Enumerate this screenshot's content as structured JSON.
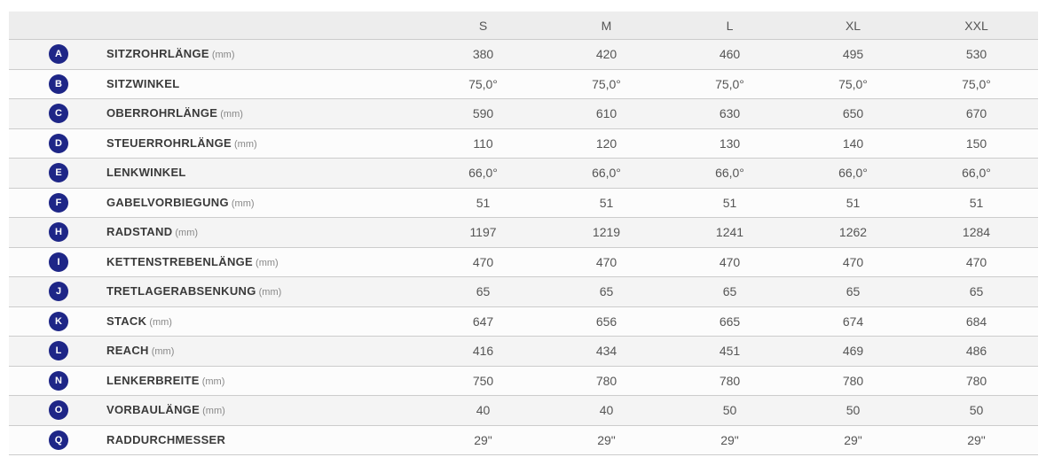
{
  "colors": {
    "badge-bg": "#1e2687",
    "header-bg": "#ededed",
    "row-shade": "#f4f4f4",
    "row-plain": "#fcfcfc",
    "border": "#cccccc",
    "label-text": "#3a3a3a",
    "value-text": "#555555",
    "unit-text": "#888888"
  },
  "table": {
    "size_headers": [
      "S",
      "M",
      "L",
      "XL",
      "XXL"
    ],
    "rows": [
      {
        "badge": "A",
        "label": "SITZROHRLÄNGE",
        "unit": "(mm)",
        "values": [
          "380",
          "420",
          "460",
          "495",
          "530"
        ]
      },
      {
        "badge": "B",
        "label": "SITZWINKEL",
        "unit": "",
        "values": [
          "75,0°",
          "75,0°",
          "75,0°",
          "75,0°",
          "75,0°"
        ]
      },
      {
        "badge": "C",
        "label": "OBERROHRLÄNGE",
        "unit": "(mm)",
        "values": [
          "590",
          "610",
          "630",
          "650",
          "670"
        ]
      },
      {
        "badge": "D",
        "label": "STEUERROHRLÄNGE",
        "unit": "(mm)",
        "values": [
          "110",
          "120",
          "130",
          "140",
          "150"
        ]
      },
      {
        "badge": "E",
        "label": "LENKWINKEL",
        "unit": "",
        "values": [
          "66,0°",
          "66,0°",
          "66,0°",
          "66,0°",
          "66,0°"
        ]
      },
      {
        "badge": "F",
        "label": "GABELVORBIEGUNG",
        "unit": "(mm)",
        "values": [
          "51",
          "51",
          "51",
          "51",
          "51"
        ]
      },
      {
        "badge": "H",
        "label": "RADSTAND",
        "unit": "(mm)",
        "values": [
          "1197",
          "1219",
          "1241",
          "1262",
          "1284"
        ]
      },
      {
        "badge": "I",
        "label": "KETTENSTREBENLÄNGE",
        "unit": "(mm)",
        "values": [
          "470",
          "470",
          "470",
          "470",
          "470"
        ]
      },
      {
        "badge": "J",
        "label": "TRETLAGERABSENKUNG",
        "unit": "(mm)",
        "values": [
          "65",
          "65",
          "65",
          "65",
          "65"
        ]
      },
      {
        "badge": "K",
        "label": "STACK",
        "unit": "(mm)",
        "values": [
          "647",
          "656",
          "665",
          "674",
          "684"
        ]
      },
      {
        "badge": "L",
        "label": "REACH",
        "unit": "(mm)",
        "values": [
          "416",
          "434",
          "451",
          "469",
          "486"
        ]
      },
      {
        "badge": "N",
        "label": "LENKERBREITE",
        "unit": "(mm)",
        "values": [
          "750",
          "780",
          "780",
          "780",
          "780"
        ]
      },
      {
        "badge": "O",
        "label": "VORBAULÄNGE",
        "unit": "(mm)",
        "values": [
          "40",
          "40",
          "50",
          "50",
          "50"
        ]
      },
      {
        "badge": "Q",
        "label": "RADDURCHMESSER",
        "unit": "",
        "values": [
          "29\"",
          "29\"",
          "29\"",
          "29\"",
          "29\""
        ]
      }
    ]
  }
}
